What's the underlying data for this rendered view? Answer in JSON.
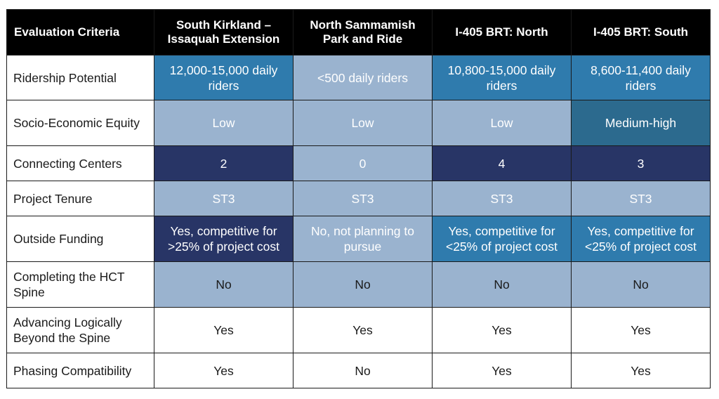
{
  "header": {
    "criteria": "Evaluation Criteria",
    "col1": "South Kirkland – Issaquah Extension",
    "col2": "North Sammamish Park and Ride",
    "col3": "I-405 BRT: North",
    "col4": "I-405 BRT: South"
  },
  "rows": [
    {
      "label": "Ridership Potential",
      "cells": [
        "12,000-15,000 daily riders",
        "<500 daily riders",
        "10,800-15,000 daily riders",
        "8,600-11,400 daily riders"
      ]
    },
    {
      "label": "Socio-Economic Equity",
      "cells": [
        "Low",
        "Low",
        "Low",
        "Medium-high"
      ]
    },
    {
      "label": "Connecting Centers",
      "cells": [
        "2",
        "0",
        "4",
        "3"
      ]
    },
    {
      "label": "Project Tenure",
      "cells": [
        "ST3",
        "ST3",
        "ST3",
        "ST3"
      ]
    },
    {
      "label": "Outside Funding",
      "cells": [
        "Yes, competitive for >25% of project cost",
        "No, not planning to pursue",
        "Yes, competitive for <25% of project cost",
        "Yes, competitive for <25% of project cost"
      ]
    },
    {
      "label": "Completing the HCT Spine",
      "cells": [
        "No",
        "No",
        "No",
        "No"
      ]
    },
    {
      "label": "Advancing Logically Beyond the Spine",
      "cells": [
        "Yes",
        "Yes",
        "Yes",
        "Yes"
      ]
    },
    {
      "label": "Phasing Compatibility",
      "cells": [
        "Yes",
        "No",
        "Yes",
        "Yes"
      ]
    }
  ],
  "colors": {
    "header_bg": "#000000",
    "blue": "#2f7bad",
    "light_blue": "#9ab3cf",
    "navy": "#283566",
    "teal": "#2c6a8e",
    "white": "#ffffff"
  }
}
